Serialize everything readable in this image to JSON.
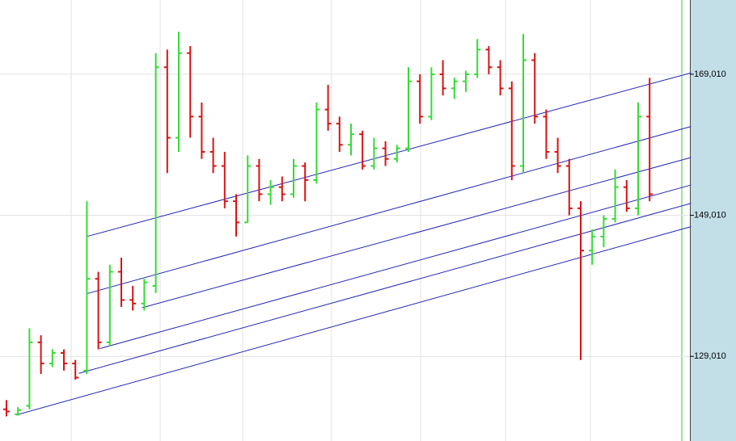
{
  "chart_data": {
    "type": "ohlc",
    "ylim": [
      117010,
      179530
    ],
    "yticks": [
      {
        "value": 129010,
        "label": "129,010"
      },
      {
        "value": 149010,
        "label": "149,010"
      },
      {
        "value": 169010,
        "label": "169,010"
      }
    ],
    "grid": true,
    "up_color": "#33dd33",
    "down_color": "#dd1111",
    "trendline_color": "#2424b4",
    "open": [
      121500,
      120800,
      122000,
      131000,
      128000,
      129500,
      128000,
      127000,
      140000,
      131000,
      141000,
      137000,
      136500,
      139000,
      170000,
      160000,
      172000,
      163000,
      158000,
      156000,
      151000,
      148000,
      156000,
      152000,
      153000,
      152000,
      156000,
      154000,
      164000,
      162000,
      159000,
      160500,
      156000,
      158500,
      157000,
      158500,
      168000,
      163000,
      169000,
      167000,
      168000,
      169000,
      172500,
      170000,
      167000,
      156000,
      171000,
      163000,
      158000,
      156000,
      150000,
      144000,
      146000,
      148500,
      153000,
      150000,
      163000
    ],
    "high": [
      122800,
      121800,
      133000,
      132000,
      130000,
      130000,
      128500,
      151000,
      141000,
      142000,
      143000,
      139000,
      140000,
      172000,
      172500,
      175000,
      173000,
      165000,
      160000,
      158000,
      152000,
      157500,
      157000,
      154000,
      154500,
      157000,
      156500,
      165000,
      167500,
      163000,
      162000,
      161000,
      160000,
      159500,
      159000,
      170000,
      169000,
      170000,
      171000,
      168500,
      169500,
      174000,
      173000,
      171000,
      168000,
      174700,
      172000,
      164000,
      160000,
      157000,
      151000,
      147000,
      149000,
      155500,
      154000,
      165000,
      168500
    ],
    "low": [
      120500,
      120600,
      121500,
      126500,
      127500,
      127000,
      125700,
      126500,
      130000,
      130500,
      136000,
      135500,
      135500,
      138000,
      155000,
      158000,
      160000,
      157000,
      155000,
      150000,
      146000,
      148000,
      151000,
      150500,
      151000,
      151500,
      151000,
      153500,
      161000,
      158000,
      157500,
      155500,
      155500,
      156000,
      156500,
      158000,
      162000,
      162500,
      166000,
      165500,
      166500,
      168500,
      169000,
      166000,
      154000,
      155000,
      162000,
      157000,
      155000,
      149000,
      128500,
      142000,
      144500,
      148000,
      149500,
      149000,
      151000
    ],
    "close": [
      121200,
      121400,
      131000,
      128000,
      129500,
      128000,
      126000,
      140000,
      131000,
      141000,
      137000,
      136500,
      139500,
      170000,
      160000,
      172000,
      163000,
      158000,
      156000,
      151000,
      148000,
      156000,
      152000,
      153000,
      152000,
      156000,
      154000,
      164000,
      162000,
      159000,
      160500,
      156000,
      158500,
      157000,
      158500,
      168000,
      163000,
      169000,
      167000,
      168000,
      169000,
      172500,
      170000,
      167000,
      156000,
      171000,
      163000,
      158000,
      156000,
      150000,
      144000,
      146000,
      148500,
      153000,
      150000,
      163000,
      152000
    ],
    "trendlines": [
      {
        "x": [
          7,
          59.6
        ],
        "y": [
          146000,
          169200
        ]
      },
      {
        "x": [
          7,
          59.6
        ],
        "y": [
          137900,
          161600
        ]
      },
      {
        "x": [
          11.8,
          59.6
        ],
        "y": [
          135900,
          157200
        ]
      },
      {
        "x": [
          8.1,
          59.6
        ],
        "y": [
          130100,
          153300
        ]
      },
      {
        "x": [
          6.3,
          59.6
        ],
        "y": [
          126600,
          150700
        ]
      },
      {
        "x": [
          0.85,
          59.6
        ],
        "y": [
          120700,
          147400
        ]
      }
    ]
  }
}
